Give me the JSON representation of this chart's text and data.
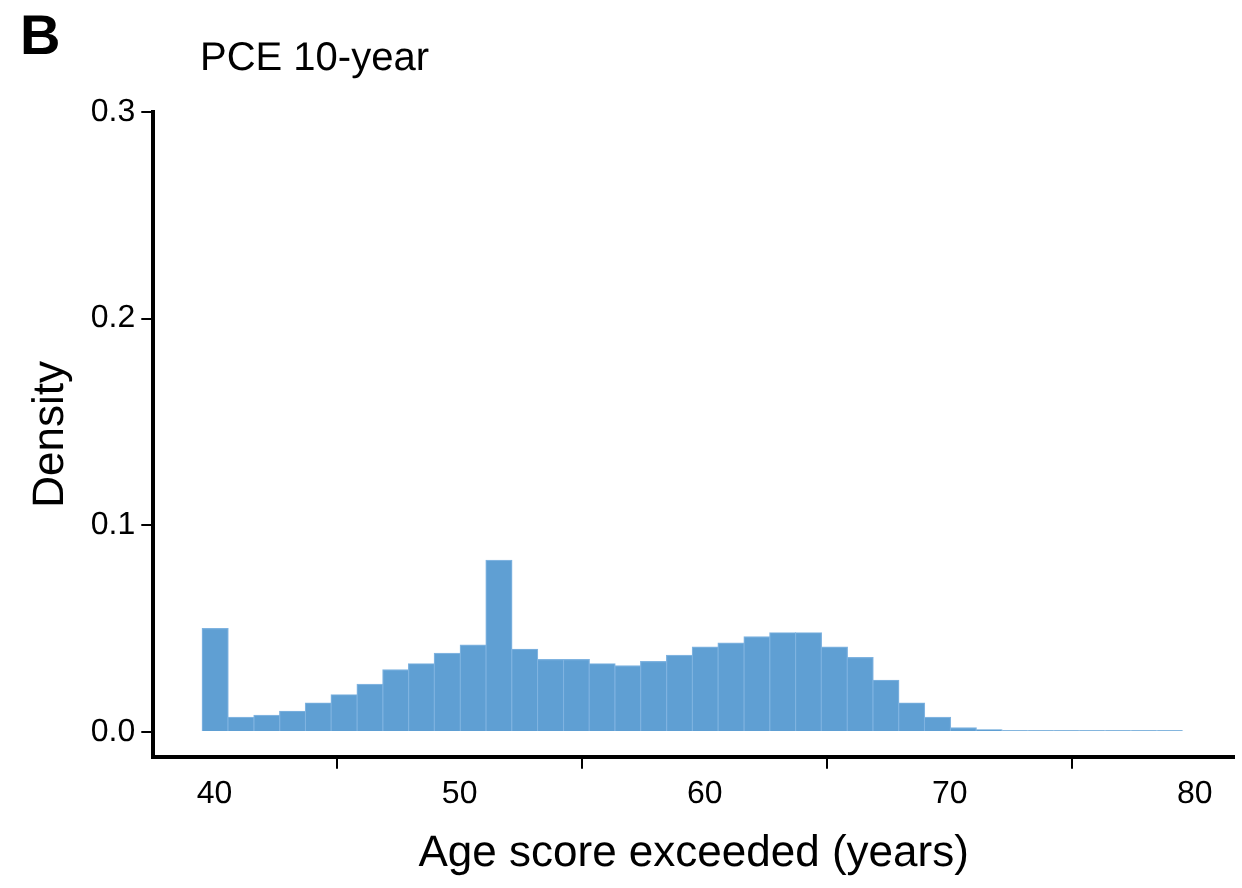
{
  "chart_data": {
    "type": "histogram",
    "title": "PCE 10-year",
    "xlabel": "Age score exceeded (years)",
    "ylabel": "Density",
    "annotations": [
      "B"
    ],
    "bins": [
      39.5,
      40.55,
      41.61,
      42.66,
      43.71,
      44.76,
      45.82,
      46.87,
      47.92,
      48.97,
      50.03,
      51.08,
      52.13,
      53.18,
      54.24,
      55.29,
      56.34,
      57.39,
      58.45,
      59.5,
      60.55,
      61.61,
      62.66,
      63.71,
      64.76,
      65.82,
      66.87,
      67.92,
      68.97,
      70.03,
      71.08,
      72.13,
      73.18,
      74.24,
      75.29,
      76.34,
      77.39,
      78.45,
      79.5
    ],
    "values": [
      0.05,
      0.007,
      0.008,
      0.01,
      0.014,
      0.018,
      0.023,
      0.03,
      0.033,
      0.038,
      0.042,
      0.083,
      0.04,
      0.035,
      0.035,
      0.033,
      0.032,
      0.034,
      0.037,
      0.041,
      0.043,
      0.046,
      0.048,
      0.048,
      0.041,
      0.036,
      0.025,
      0.014,
      0.007,
      0.002,
      0.001,
      0.0005,
      0.0005,
      0.0005,
      0.0005,
      0.0005,
      0.0005,
      0.0005
    ],
    "color": "#5f9fd3",
    "xlim": [
      37.5,
      81.6
    ],
    "ylim": [
      -0.012,
      0.3
    ],
    "xticks": [
      40,
      50,
      60,
      70,
      80
    ],
    "yticks": [
      {
        "value": 0,
        "label": "0.0"
      },
      0.1,
      0.2,
      0.3
    ],
    "grid": false,
    "legend": false
  }
}
